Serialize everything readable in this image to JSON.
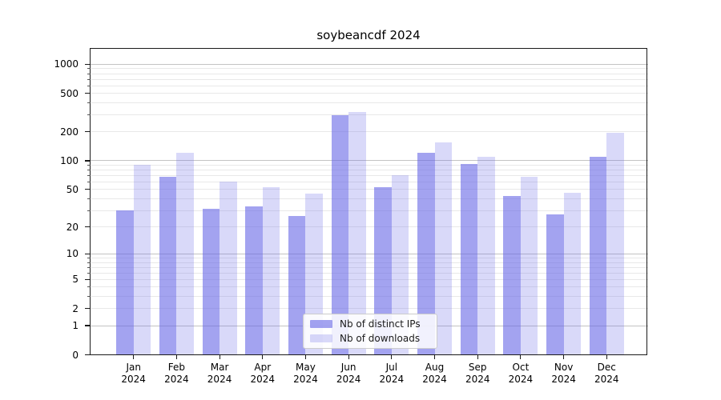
{
  "title": "soybeancdf 2024",
  "chart_data": {
    "type": "bar",
    "title": "soybeancdf 2024",
    "categories": [
      "Jan\n2024",
      "Feb\n2024",
      "Mar\n2024",
      "Apr\n2024",
      "May\n2024",
      "Jun\n2024",
      "Jul\n2024",
      "Aug\n2024",
      "Sep\n2024",
      "Oct\n2024",
      "Nov\n2024",
      "Dec\n2024"
    ],
    "series": [
      {
        "name": "Nb of distinct IPs",
        "color": "#6666e6",
        "alpha": 0.6,
        "values": [
          30,
          68,
          31,
          33,
          26,
          296,
          53,
          122,
          93,
          43,
          27,
          110
        ]
      },
      {
        "name": "Nb of downloads",
        "color": "#6666e6",
        "alpha": 0.25,
        "values": [
          90,
          122,
          60,
          53,
          45,
          320,
          70,
          154,
          110,
          68,
          46,
          196
        ]
      }
    ],
    "yscale": "log10(value+1)",
    "yticks": [
      0,
      1,
      2,
      5,
      10,
      20,
      50,
      100,
      200,
      500,
      1000
    ],
    "ylim_top": 1460,
    "xlabel": "",
    "ylabel": "",
    "grid": true,
    "legend_position": "lower center",
    "colors": {
      "bar_base": "#6666e6",
      "grid_major": "#c3c3c3",
      "grid_minor": "#e8e8e8",
      "spine": "#1a1a1a",
      "background": "#ffffff"
    }
  }
}
